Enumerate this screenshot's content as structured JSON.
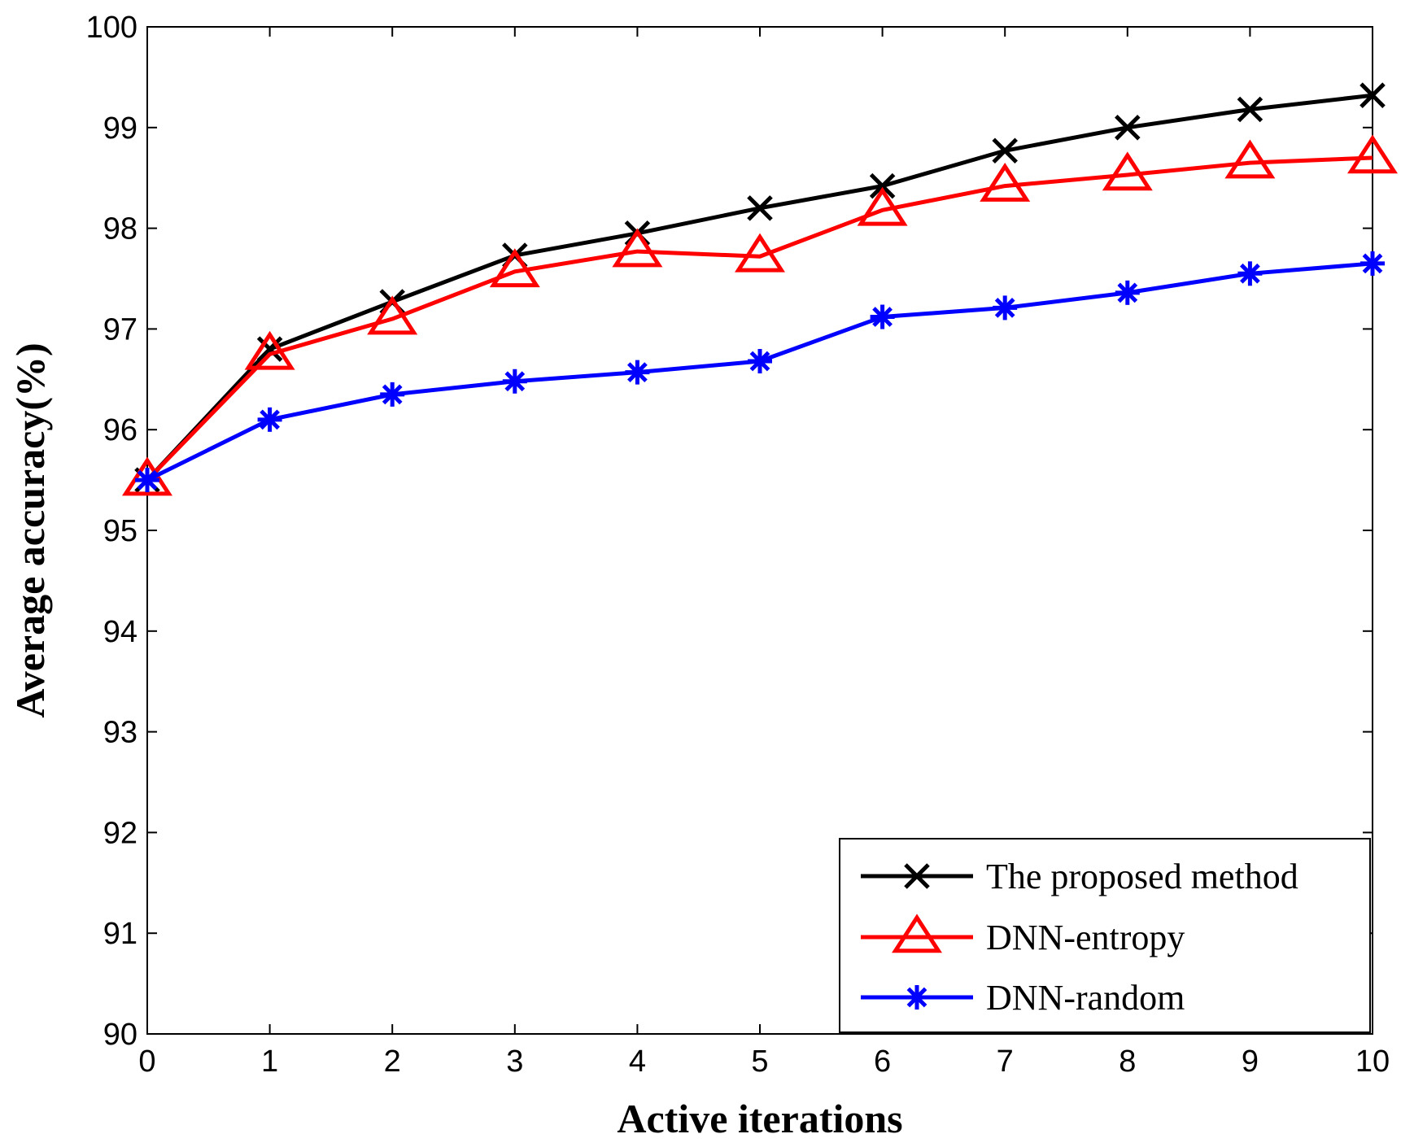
{
  "chart_data": {
    "type": "line",
    "title": "",
    "xlabel": "Active iterations",
    "ylabel": "Average accuracy(%)",
    "xlim": [
      0,
      10
    ],
    "ylim": [
      90,
      100
    ],
    "xticks": [
      0,
      1,
      2,
      3,
      4,
      5,
      6,
      7,
      8,
      9,
      10
    ],
    "yticks": [
      90,
      91,
      92,
      93,
      94,
      95,
      96,
      97,
      98,
      99,
      100
    ],
    "grid": false,
    "legend_position": "bottom-right",
    "x": [
      0,
      1,
      2,
      3,
      4,
      5,
      6,
      7,
      8,
      9,
      10
    ],
    "series": [
      {
        "name": "The proposed method",
        "color": "#000000",
        "marker": "x",
        "values": [
          95.5,
          96.8,
          97.27,
          97.73,
          97.95,
          98.2,
          98.42,
          98.77,
          99.0,
          99.18,
          99.32
        ]
      },
      {
        "name": "DNN-entropy",
        "color": "#ff0000",
        "marker": "triangle",
        "values": [
          95.5,
          96.75,
          97.1,
          97.57,
          97.77,
          97.72,
          98.18,
          98.42,
          98.53,
          98.65,
          98.7
        ]
      },
      {
        "name": "DNN-random",
        "color": "#0000ff",
        "marker": "asterisk",
        "values": [
          95.5,
          96.1,
          96.35,
          96.48,
          96.57,
          96.68,
          97.12,
          97.21,
          97.36,
          97.55,
          97.65
        ]
      }
    ]
  }
}
